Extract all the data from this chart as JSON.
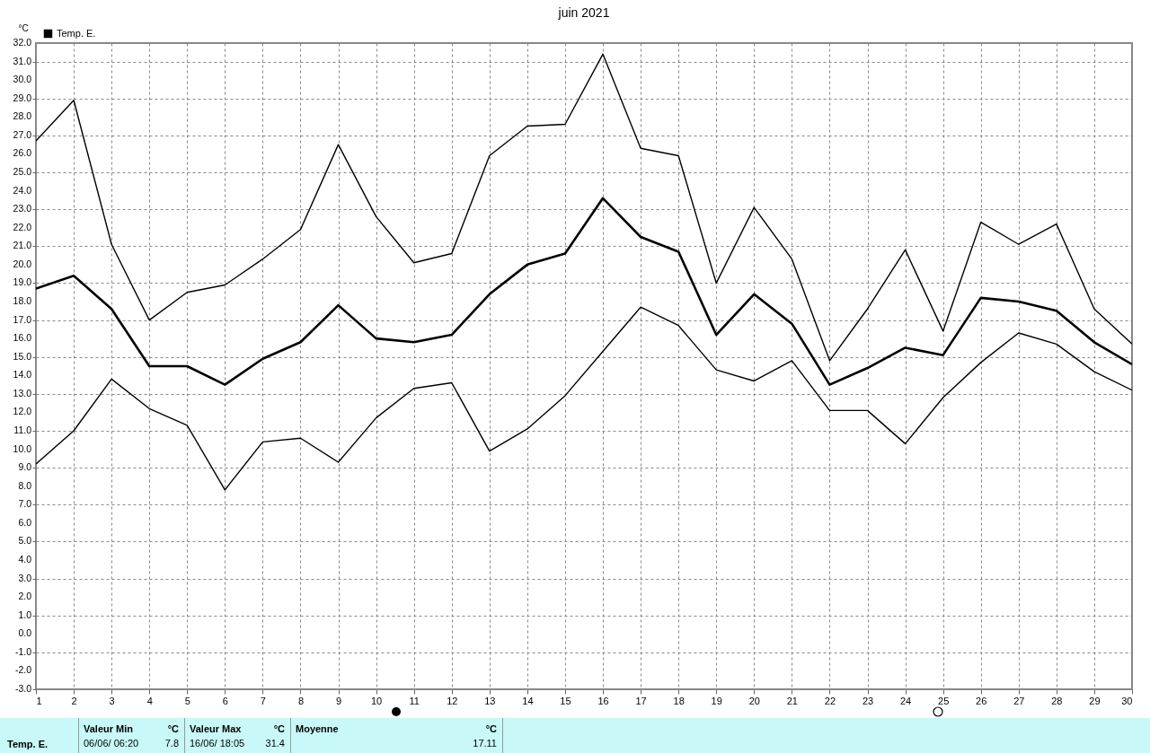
{
  "chart_data": {
    "type": "line",
    "title": "juin 2021",
    "ylabel": "°C",
    "x": [
      1,
      2,
      3,
      4,
      5,
      6,
      7,
      8,
      9,
      10,
      11,
      12,
      13,
      14,
      15,
      16,
      17,
      18,
      19,
      20,
      21,
      22,
      23,
      24,
      25,
      26,
      27,
      28,
      29,
      30
    ],
    "series": [
      {
        "color": "#000000",
        "values": [
          26.7,
          28.9,
          21.1,
          17.0,
          18.5,
          18.9,
          20.3,
          21.9,
          26.5,
          22.6,
          20.1,
          20.6,
          25.9,
          27.5,
          27.6,
          31.4,
          26.3,
          25.9,
          19.0,
          23.1,
          20.3,
          14.8,
          17.6,
          20.8,
          16.4,
          22.3,
          21.1,
          22.2,
          17.6,
          15.7
        ]
      },
      {
        "name": "Temp. E.",
        "color": "#000000",
        "values": [
          18.7,
          19.4,
          17.6,
          14.5,
          14.5,
          13.5,
          14.9,
          15.8,
          17.8,
          16.0,
          15.8,
          16.2,
          18.4,
          20.0,
          20.6,
          23.6,
          21.5,
          20.7,
          16.2,
          18.4,
          16.8,
          13.5,
          14.4,
          15.5,
          15.1,
          18.2,
          18.0,
          17.5,
          15.8,
          14.6
        ]
      },
      {
        "color": "#000000",
        "values": [
          9.2,
          11.0,
          13.8,
          12.2,
          11.3,
          7.8,
          10.4,
          10.6,
          9.3,
          11.7,
          13.3,
          13.6,
          9.9,
          11.1,
          12.9,
          15.3,
          17.7,
          16.7,
          14.3,
          13.7,
          14.8,
          12.1,
          12.1,
          10.3,
          12.8,
          14.7,
          16.3,
          15.7,
          14.2,
          13.2
        ]
      }
    ],
    "xlim": [
      1,
      30
    ],
    "xticks": [
      1,
      2,
      3,
      4,
      5,
      6,
      7,
      8,
      9,
      10,
      11,
      12,
      13,
      14,
      15,
      16,
      17,
      18,
      19,
      20,
      21,
      22,
      23,
      24,
      25,
      26,
      27,
      28,
      29,
      30
    ],
    "ylim": [
      -3,
      32
    ],
    "yticks": [
      {
        "value": -3,
        "label": "-3.0"
      },
      {
        "value": -2,
        "label": "-2.0"
      },
      {
        "value": -1,
        "label": "-1.0"
      },
      {
        "value": 0,
        "label": "0.0"
      },
      {
        "value": 1,
        "label": "1.0"
      },
      {
        "value": 2,
        "label": "2.0"
      },
      {
        "value": 3,
        "label": "3.0"
      },
      {
        "value": 4,
        "label": "4.0"
      },
      {
        "value": 5,
        "label": "5.0"
      },
      {
        "value": 6,
        "label": "6.0"
      },
      {
        "value": 7,
        "label": "7.0"
      },
      {
        "value": 8,
        "label": "8.0"
      },
      {
        "value": 9,
        "label": "9.0"
      },
      {
        "value": 10,
        "label": "10.0"
      },
      {
        "value": 11,
        "label": "11.0"
      },
      {
        "value": 12,
        "label": "12.0"
      },
      {
        "value": 13,
        "label": "13.0"
      },
      {
        "value": 14,
        "label": "14.0"
      },
      {
        "value": 15,
        "label": "15.0"
      },
      {
        "value": 16,
        "label": "16.0"
      },
      {
        "value": 17,
        "label": "17.0"
      },
      {
        "value": 18,
        "label": "18.0"
      },
      {
        "value": 19,
        "label": "19.0"
      },
      {
        "value": 20,
        "label": "20.0"
      },
      {
        "value": 21,
        "label": "21.0"
      },
      {
        "value": 22,
        "label": "22.0"
      },
      {
        "value": 23,
        "label": "23.0"
      },
      {
        "value": 24,
        "label": "24.0"
      },
      {
        "value": 25,
        "label": "25.0"
      },
      {
        "value": 26,
        "label": "26.0"
      },
      {
        "value": 27,
        "label": "27.0"
      },
      {
        "value": 28,
        "label": "28.0"
      },
      {
        "value": 29,
        "label": "29.0"
      },
      {
        "value": 30,
        "label": "30.0"
      },
      {
        "value": 31,
        "label": "31.0"
      },
      {
        "value": 32,
        "label": "32.0"
      }
    ],
    "grid": true,
    "legend": "top left",
    "marker": "none",
    "line_style": "solid",
    "annotations": [
      "Temp. E.",
      "Valeur Min",
      "°C",
      "06/06/ 06:20",
      "7.8",
      "Valeur Max",
      "°C",
      "16/06/ 18:05",
      "31.4",
      "Moyenne",
      "°C",
      "17.11"
    ]
  }
}
